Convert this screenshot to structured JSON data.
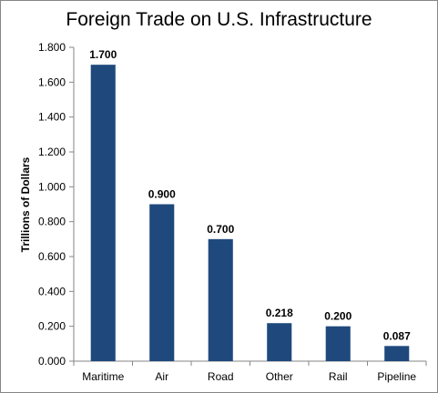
{
  "chart_data": {
    "type": "bar",
    "title": "Foreign Trade on U.S. Infrastructure",
    "xlabel": "",
    "ylabel": "Trillions of Dollars",
    "categories": [
      "Maritime",
      "Air",
      "Road",
      "Other",
      "Rail",
      "Pipeline"
    ],
    "values": [
      1.7,
      0.9,
      0.7,
      0.218,
      0.2,
      0.087
    ],
    "value_labels": [
      "1.700",
      "0.900",
      "0.700",
      "0.218",
      "0.200",
      "0.087"
    ],
    "ylim": [
      0,
      1.8
    ],
    "y_ticks": [
      "0.000",
      "0.200",
      "0.400",
      "0.600",
      "0.800",
      "1.000",
      "1.200",
      "1.400",
      "1.600",
      "1.800"
    ],
    "bar_color": "#1F497D",
    "grid": false,
    "legend": "none"
  }
}
